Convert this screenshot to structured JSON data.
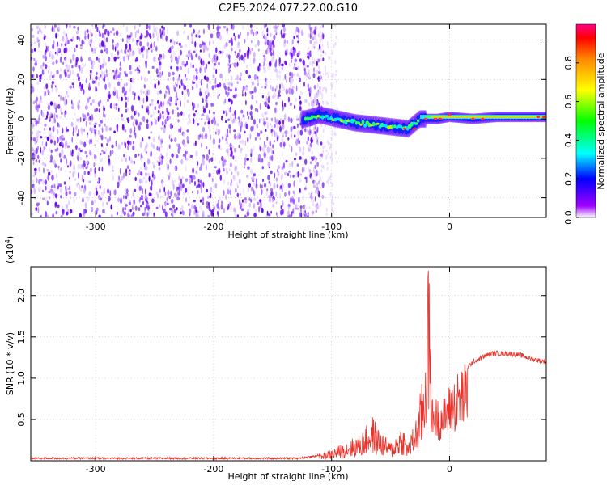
{
  "title": "C2E5.2024.077.22.00.G10",
  "chart_data": [
    {
      "type": "heatmap",
      "xlabel": "Height of straight line (km)",
      "ylabel": "Frequency (Hz)",
      "xlim": [
        -355,
        82
      ],
      "ylim": [
        -50,
        48
      ],
      "x_ticks": [
        -300,
        -200,
        -100,
        0
      ],
      "y_ticks": [
        -40,
        -20,
        0,
        20,
        40
      ],
      "colorbar": {
        "label": "Normalized spectral amplitude",
        "range": [
          0,
          1
        ],
        "ticks": [
          0.0,
          0.2,
          0.4,
          0.6,
          0.8
        ],
        "tick_labels": [
          "0.0",
          "0.2",
          "0.4",
          "0.6",
          "0.8"
        ],
        "colors": [
          "#ffffff",
          "#8800ff",
          "#0000ff",
          "#00ffff",
          "#00ff00",
          "#ffff00",
          "#ff8800",
          "#ff0000",
          "#ff00aa"
        ]
      },
      "noise_region_x": [
        -355,
        -115
      ],
      "signal_trace": [
        {
          "x": -122,
          "freq": 0
        },
        {
          "x": -110,
          "freq": 2
        },
        {
          "x": -95,
          "freq": 0
        },
        {
          "x": -80,
          "freq": -2
        },
        {
          "x": -65,
          "freq": -3
        },
        {
          "x": -50,
          "freq": -4
        },
        {
          "x": -35,
          "freq": -5
        },
        {
          "x": -25,
          "freq": 0
        },
        {
          "x": -10,
          "freq": 0
        },
        {
          "x": 0,
          "freq": 1
        },
        {
          "x": 20,
          "freq": 0
        },
        {
          "x": 40,
          "freq": 1
        },
        {
          "x": 60,
          "freq": 1
        },
        {
          "x": 82,
          "freq": 1
        }
      ],
      "grid": true
    },
    {
      "type": "line",
      "xlabel": "Height of straight line (km)",
      "ylabel": "SNR (10 * v/v)",
      "y_exponent_label": "(x10",
      "y_exponent_power": "4",
      "y_exponent_close": ")",
      "xlim": [
        -355,
        82
      ],
      "ylim": [
        0,
        2.35
      ],
      "x_ticks": [
        -300,
        -200,
        -100,
        0
      ],
      "y_ticks": [
        0.5,
        1.0,
        1.5,
        2.0
      ],
      "y_tick_labels": [
        "0.5",
        "1.0",
        "1.5",
        "2.0"
      ],
      "color": "#e8322a",
      "envelope": [
        {
          "x": -355,
          "y": 0.03
        },
        {
          "x": -130,
          "y": 0.03
        },
        {
          "x": -115,
          "y": 0.05
        },
        {
          "x": -100,
          "y": 0.12
        },
        {
          "x": -90,
          "y": 0.2
        },
        {
          "x": -75,
          "y": 0.3
        },
        {
          "x": -65,
          "y": 0.5
        },
        {
          "x": -60,
          "y": 0.35
        },
        {
          "x": -50,
          "y": 0.2
        },
        {
          "x": -40,
          "y": 0.4
        },
        {
          "x": -35,
          "y": 0.2
        },
        {
          "x": -28,
          "y": 0.5
        },
        {
          "x": -22,
          "y": 1.0
        },
        {
          "x": -18,
          "y": 2.1
        },
        {
          "x": -15,
          "y": 0.7
        },
        {
          "x": -5,
          "y": 0.7
        },
        {
          "x": 0,
          "y": 0.85
        },
        {
          "x": 10,
          "y": 1.05
        },
        {
          "x": 20,
          "y": 1.2
        },
        {
          "x": 35,
          "y": 1.3
        },
        {
          "x": 50,
          "y": 1.3
        },
        {
          "x": 60,
          "y": 1.28
        },
        {
          "x": 70,
          "y": 1.23
        },
        {
          "x": 82,
          "y": 1.2
        }
      ],
      "grid": true
    }
  ]
}
